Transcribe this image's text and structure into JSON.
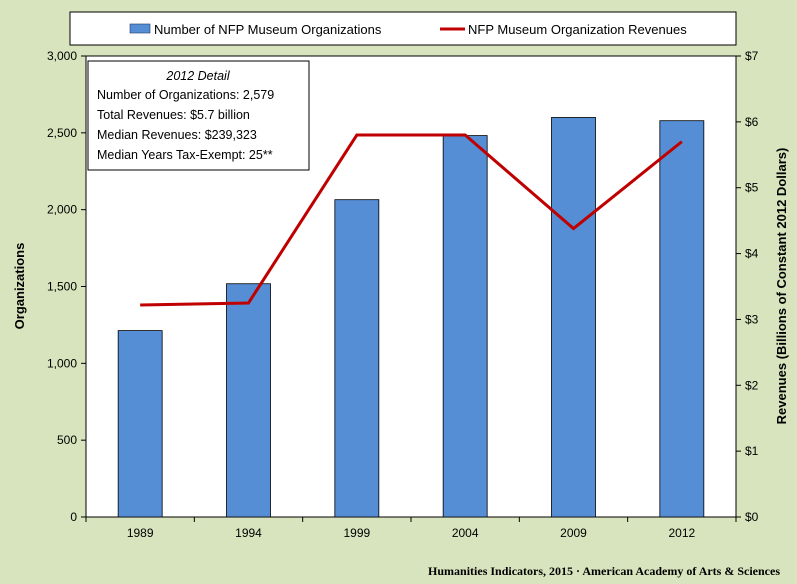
{
  "chart_data": {
    "type": "bar",
    "categories": [
      "1989",
      "1994",
      "1999",
      "2004",
      "2009",
      "2012"
    ],
    "series": [
      {
        "name": "Number of NFP Museum Organizations",
        "type": "bar",
        "axis": "left",
        "color": "#558ed5",
        "values": [
          1213,
          1518,
          2065,
          2482,
          2600,
          2579
        ]
      },
      {
        "name": "NFP Museum Organization Revenues",
        "type": "line",
        "axis": "right",
        "color": "#c00000",
        "values": [
          3.22,
          3.25,
          5.8,
          5.8,
          4.38,
          5.7
        ]
      }
    ],
    "ylabel": "Organizations",
    "y2label": "Revenues (Billions of Constant 2012 Dollars)",
    "ylim": [
      0,
      3000
    ],
    "y2lim": [
      0,
      7
    ],
    "yticks": [
      "0",
      "500",
      "1,000",
      "1,500",
      "2,000",
      "2,500",
      "3,000"
    ],
    "y2ticks": [
      "$0",
      "$1",
      "$2",
      "$3",
      "$4",
      "$5",
      "$6",
      "$7"
    ],
    "legend_position": "top",
    "grid": false
  },
  "detail_box": {
    "title": "2012 Detail",
    "lines": [
      "Number of Organizations: 2,579",
      "Total Revenues:  $5.7 billion",
      "Median Revenues:  $239,323",
      "Median Years Tax-Exempt: 25**"
    ]
  },
  "credit": "Humanities  Indicators, 2015 · American Academy of Arts & Sciences"
}
